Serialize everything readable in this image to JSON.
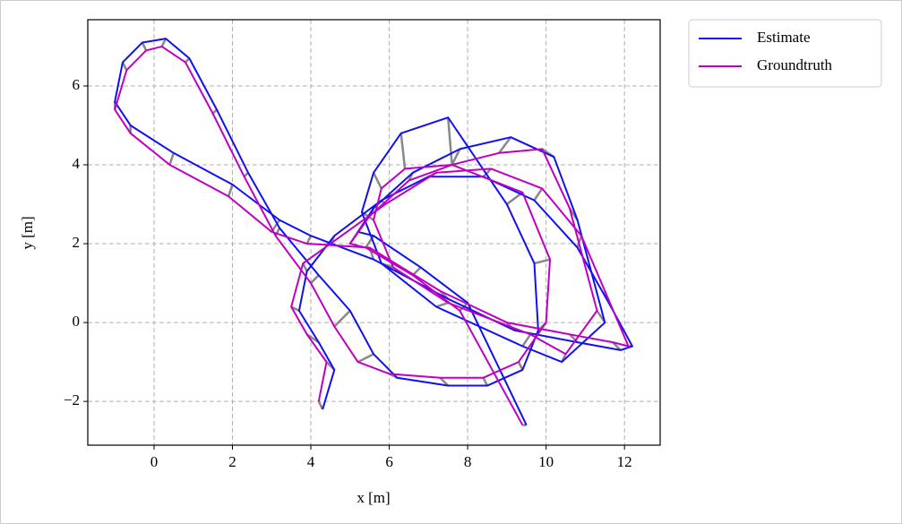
{
  "chart_data": {
    "type": "line",
    "xlabel": "x [m]",
    "ylabel": "y [m]",
    "xlim": [
      -1.69,
      12.91
    ],
    "ylim": [
      -3.11,
      7.68
    ],
    "xticks": [
      0,
      2,
      4,
      6,
      8,
      10,
      12
    ],
    "yticks": [
      {
        "value": -2,
        "label": "−2"
      },
      0,
      2,
      4,
      6
    ],
    "grid": true,
    "legend": "outside upper right",
    "error_color": "#888888",
    "series": [
      {
        "name": "Estimate",
        "color": "#1010f0",
        "x": [
          4.3,
          4.6,
          4.2,
          3.7,
          3.9,
          4.6,
          5.8,
          7.0,
          8.4,
          9.7,
          10.8,
          11.6,
          12.2,
          11.9,
          10.8,
          9.2,
          7.5,
          5.6,
          4.0,
          3.2,
          2.0,
          0.5,
          -0.6,
          -1.0,
          -0.8,
          -0.3,
          0.3,
          0.9,
          1.6,
          2.4,
          3.2,
          4.2,
          5.0,
          5.6,
          6.2,
          7.5,
          8.5,
          9.4,
          9.8,
          9.7,
          9.0,
          7.5,
          6.3,
          5.6,
          5.3,
          5.8,
          7.2,
          9.4,
          10.4,
          11.5,
          10.8,
          10.2,
          9.1,
          7.8,
          6.6,
          5.6,
          5.2,
          5.6,
          6.8,
          8.0,
          9.5
        ],
        "values": [
          -2.2,
          -1.2,
          -0.5,
          0.3,
          1.3,
          2.2,
          3.1,
          3.7,
          3.7,
          3.1,
          1.9,
          0.5,
          -0.6,
          -0.7,
          -0.5,
          -0.2,
          0.6,
          1.6,
          2.2,
          2.6,
          3.5,
          4.3,
          5.0,
          5.6,
          6.6,
          7.1,
          7.2,
          6.7,
          5.4,
          3.8,
          2.4,
          1.2,
          0.3,
          -0.8,
          -1.4,
          -1.6,
          -1.6,
          -1.2,
          -0.2,
          1.5,
          3.0,
          5.2,
          4.8,
          3.8,
          2.8,
          1.5,
          0.4,
          -0.6,
          -1.0,
          0.0,
          2.6,
          4.2,
          4.7,
          4.4,
          3.8,
          2.9,
          2.3,
          2.2,
          1.4,
          0.5,
          -2.6
        ]
      },
      {
        "name": "Groundtruth",
        "color": "#c000c0",
        "x": [
          4.2,
          4.4,
          3.9,
          3.5,
          3.8,
          4.5,
          5.9,
          7.2,
          8.6,
          9.9,
          10.9,
          11.5,
          12.1,
          11.7,
          10.6,
          9.0,
          7.3,
          5.5,
          3.9,
          3.0,
          1.9,
          0.4,
          -0.6,
          -1.0,
          -0.7,
          -0.2,
          0.2,
          0.8,
          1.5,
          2.3,
          3.1,
          4.0,
          4.6,
          5.2,
          6.0,
          7.3,
          8.4,
          9.3,
          10.0,
          10.1,
          9.4,
          7.6,
          6.4,
          5.8,
          5.6,
          6.1,
          7.5,
          9.6,
          10.5,
          11.3,
          10.6,
          9.9,
          8.8,
          7.6,
          6.5,
          5.5,
          5.0,
          5.4,
          6.6,
          7.8,
          9.4
        ],
        "values": [
          -2.0,
          -1.0,
          -0.3,
          0.4,
          1.5,
          2.0,
          3.0,
          3.8,
          3.9,
          3.4,
          2.2,
          0.8,
          -0.6,
          -0.5,
          -0.3,
          0.0,
          0.8,
          1.9,
          2.0,
          2.3,
          3.2,
          4.0,
          4.8,
          5.4,
          6.4,
          6.9,
          7.0,
          6.6,
          5.3,
          3.7,
          2.2,
          1.0,
          -0.1,
          -1.0,
          -1.3,
          -1.4,
          -1.4,
          -1.0,
          0.0,
          1.6,
          3.3,
          4.0,
          3.9,
          3.4,
          2.6,
          1.4,
          0.5,
          -0.3,
          -0.8,
          0.3,
          2.9,
          4.4,
          4.3,
          4.0,
          3.6,
          2.7,
          2.0,
          1.9,
          1.2,
          0.3,
          -2.6
        ]
      }
    ]
  }
}
